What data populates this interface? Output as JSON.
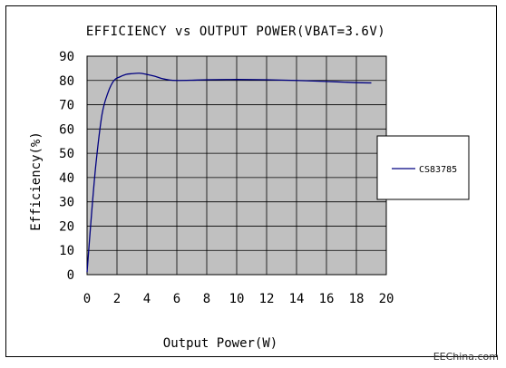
{
  "chart_data": {
    "type": "line",
    "title": "EFFICIENCY vs OUTPUT POWER(VBAT=3.6V)",
    "xlabel": "Output Power(W)",
    "ylabel": "Efficiency(%)",
    "xlim": [
      0,
      20
    ],
    "ylim": [
      0,
      90
    ],
    "xticks": [
      0,
      2,
      4,
      6,
      8,
      10,
      12,
      14,
      16,
      18,
      20
    ],
    "yticks": [
      0,
      10,
      20,
      30,
      40,
      50,
      60,
      70,
      80,
      90
    ],
    "grid": true,
    "legend_position": "right",
    "plot_background": "#c0c0c0",
    "series": [
      {
        "name": "CS83785",
        "color": "#000080",
        "x": [
          0,
          0.3,
          0.6,
          1.0,
          1.4,
          1.8,
          2.2,
          2.6,
          3.0,
          3.5,
          4.0,
          4.5,
          5.0,
          5.5,
          6.0,
          7.0,
          8.0,
          10.0,
          12.0,
          14.0,
          16.0,
          18.0,
          19.0
        ],
        "y": [
          1,
          25,
          46,
          66,
          75,
          80,
          81.5,
          82.5,
          82.8,
          83,
          82.5,
          81.8,
          80.8,
          80.2,
          80,
          80.1,
          80.3,
          80.4,
          80.3,
          80,
          79.6,
          79.1,
          79
        ]
      }
    ]
  },
  "watermark": "EEChina.com"
}
